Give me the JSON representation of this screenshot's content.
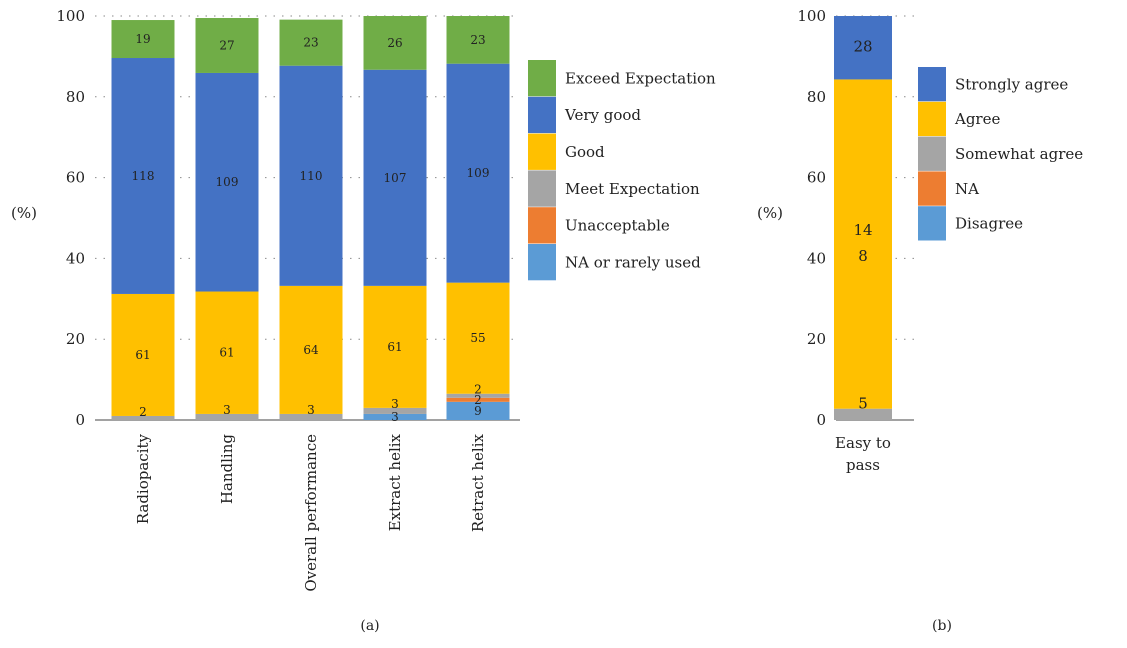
{
  "chart_data": [
    {
      "type": "bar",
      "stacked": true,
      "panel_label": "(a)",
      "ylabel": "(%)",
      "ylim": [
        0,
        100
      ],
      "yticks": [
        0,
        20,
        40,
        60,
        80,
        100
      ],
      "categories": [
        "Radiopacity",
        "Handling",
        "Overall performance",
        "Extract helix",
        "Retract helix"
      ],
      "series": [
        {
          "name": "NA or rarely used",
          "color": "#5B9BD5",
          "values": [
            0,
            0,
            0,
            1.5,
            4.5
          ],
          "labels": [
            "",
            "",
            "",
            "3",
            "9"
          ]
        },
        {
          "name": "Unacceptable",
          "color": "#ED7D31",
          "values": [
            0,
            0,
            0,
            0,
            1
          ],
          "labels": [
            "",
            "",
            "",
            "",
            "2"
          ]
        },
        {
          "name": "Meet Expectation",
          "color": "#A5A5A5",
          "values": [
            1,
            1.5,
            1.5,
            1.5,
            1
          ],
          "labels": [
            "2",
            "3",
            "3",
            "3",
            "2"
          ]
        },
        {
          "name": "Good",
          "color": "#FFC000",
          "values": [
            30.2,
            30.3,
            31.7,
            30.2,
            27.5
          ],
          "labels": [
            "61",
            "61",
            "64",
            "61",
            "55"
          ]
        },
        {
          "name": "Very good",
          "color": "#4472C4",
          "values": [
            58.4,
            54.1,
            54.5,
            53.5,
            54.2
          ],
          "labels": [
            "118",
            "109",
            "110",
            "107",
            "109"
          ]
        },
        {
          "name": "Exceed Expectation",
          "color": "#70AD47",
          "values": [
            9.4,
            13.6,
            11.4,
            13.3,
            11.8
          ],
          "labels": [
            "19",
            "27",
            "23",
            "26",
            "23"
          ]
        }
      ],
      "legend_order": [
        "Exceed Expectation",
        "Very good",
        "Good",
        "Meet Expectation",
        "Unacceptable",
        "NA or rarely used"
      ]
    },
    {
      "type": "bar",
      "stacked": true,
      "panel_label": "(b)",
      "ylabel": "(%)",
      "ylim": [
        0,
        100
      ],
      "yticks": [
        0,
        20,
        40,
        60,
        80,
        100
      ],
      "categories": [
        "Easy to pass"
      ],
      "series": [
        {
          "name": "Disagree",
          "color": "#5B9BD5",
          "values": [
            0
          ],
          "labels": [
            ""
          ]
        },
        {
          "name": "NA",
          "color": "#ED7D31",
          "values": [
            0
          ],
          "labels": [
            ""
          ]
        },
        {
          "name": "Somewhat agree",
          "color": "#A5A5A5",
          "values": [
            2.8
          ],
          "labels": [
            "5"
          ]
        },
        {
          "name": "Agree",
          "color": "#FFC000",
          "values": [
            81.5
          ],
          "labels": [
            "14\n8"
          ]
        },
        {
          "name": "Strongly agree",
          "color": "#4472C4",
          "values": [
            15.7
          ],
          "labels": [
            "28"
          ]
        }
      ],
      "legend_order": [
        "Strongly agree",
        "Agree",
        "Somewhat agree",
        "NA",
        "Disagree"
      ]
    }
  ]
}
